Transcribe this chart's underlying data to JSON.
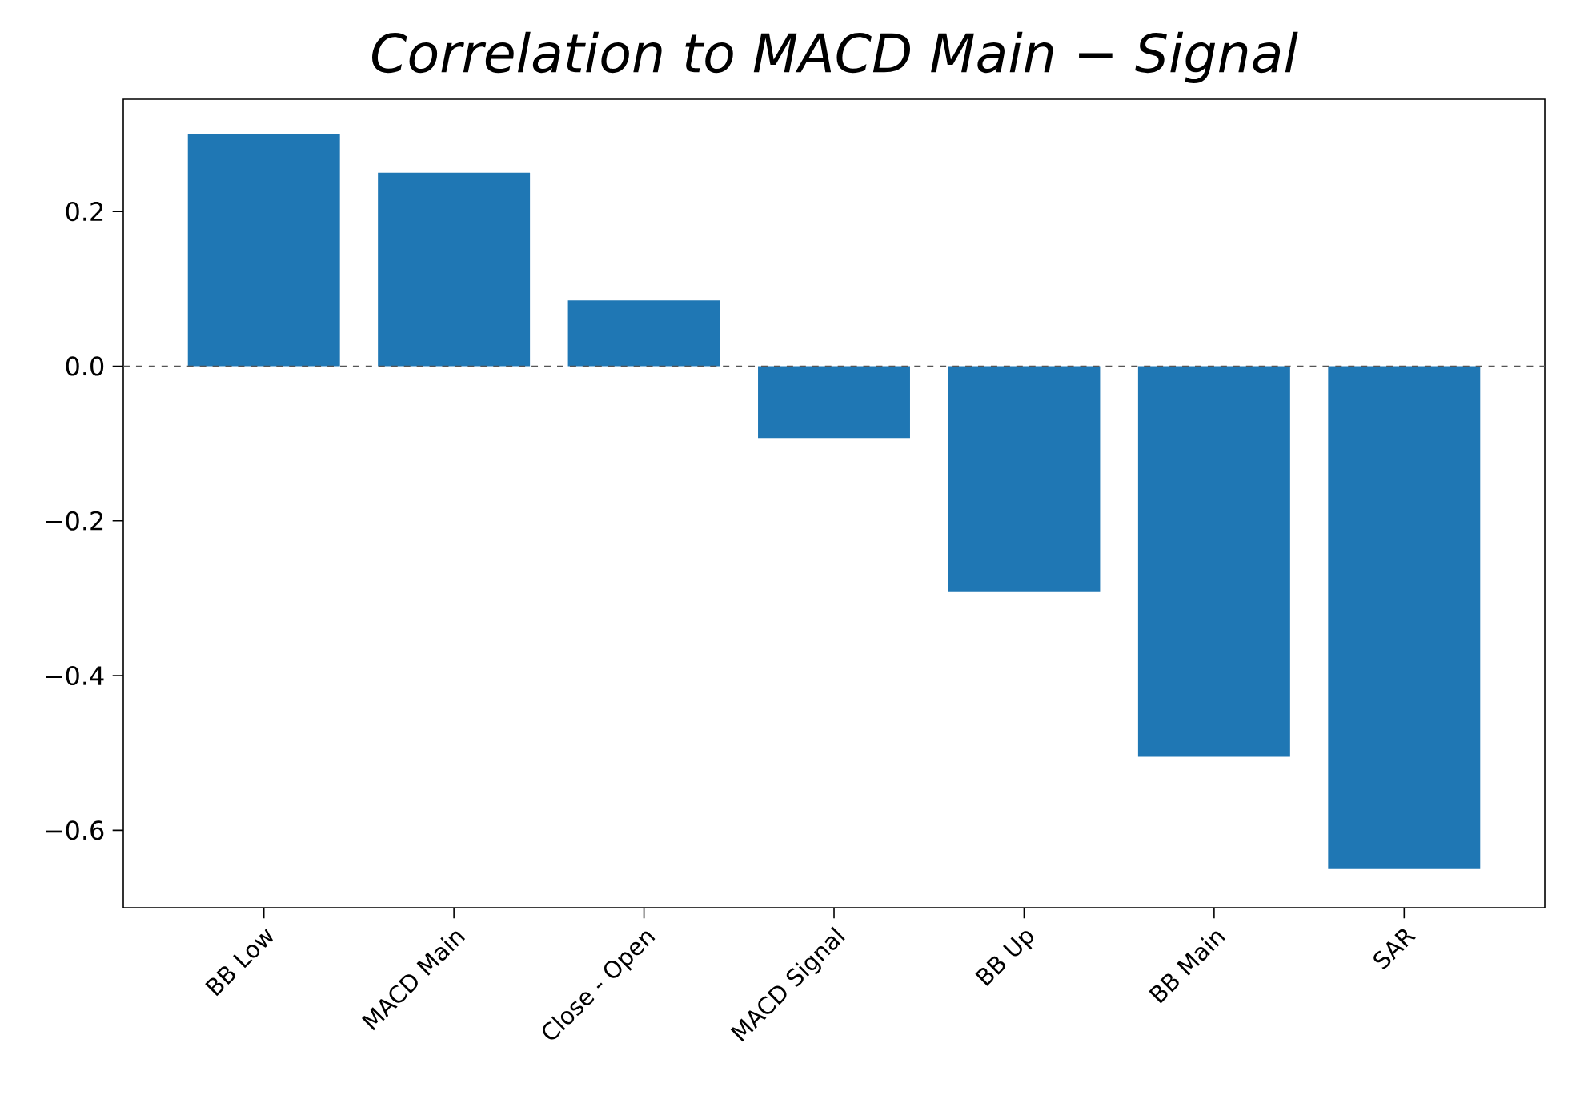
{
  "chart_data": {
    "type": "bar",
    "title": "Correlation to MACD Main − Signal",
    "categories": [
      "BB Low",
      "MACD Main",
      "Close - Open",
      "MACD Signal",
      "BB Up",
      "BB Main",
      "SAR"
    ],
    "values": [
      0.3,
      0.25,
      0.085,
      -0.093,
      -0.291,
      -0.505,
      -0.65
    ],
    "color": "#1f77b4",
    "ylim": [
      -0.7,
      0.345
    ],
    "yticks": [
      {
        "value": -0.6,
        "label": "−0.6"
      },
      {
        "value": -0.4,
        "label": "−0.4"
      },
      {
        "value": -0.2,
        "label": "−0.2"
      },
      {
        "value": 0.0,
        "label": "0.0"
      },
      {
        "value": 0.2,
        "label": "0.2"
      }
    ],
    "ref_lines": [
      {
        "axis": "y",
        "value": 0,
        "color": "#555555",
        "line_style": "dashed"
      }
    ]
  }
}
